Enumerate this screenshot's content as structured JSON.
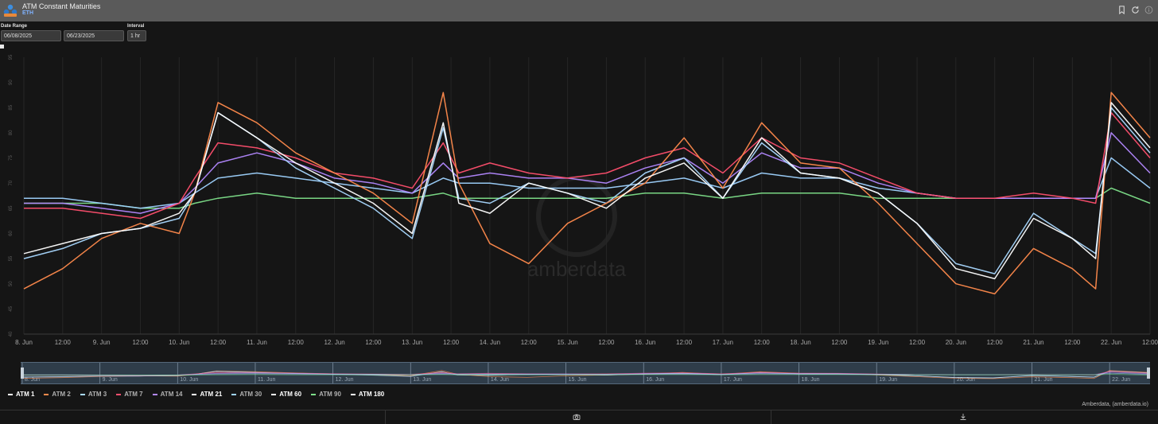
{
  "header": {
    "title": "ATM Constant Maturities",
    "subtitle": "ETH"
  },
  "controls": {
    "date_range_label": "Date Range",
    "start_date": "06/08/2025",
    "end_date": "06/23/2025",
    "interval_label": "Interval",
    "interval_value": "1 hr"
  },
  "icons": {
    "logo": "amberdata-logo-icon",
    "bookmark": "bookmark-icon",
    "refresh": "refresh-icon",
    "info": "info-icon",
    "camera": "camera-icon",
    "download": "download-icon"
  },
  "watermark": "amberdata",
  "credit": "Amberdata, (amberdata.io)",
  "colors": {
    "background": "#151515",
    "grid": "#2a2a2a",
    "atm_1": "#ffffff",
    "atm_2": "#ff8a4c",
    "atm_3": "#a9d8ff",
    "atm_7": "#ff4f6e",
    "atm_14": "#b388ff",
    "atm_21": "#ffffff",
    "atm_30": "#9fd3ff",
    "atm_60": "#ffffff",
    "atm_90": "#7ee08a",
    "atm_180": "#ffffff"
  },
  "chart_data": {
    "type": "line",
    "x_tick_labels": [
      "8. Jun",
      "12:00",
      "9. Jun",
      "12:00",
      "10. Jun",
      "12:00",
      "11. Jun",
      "12:00",
      "12. Jun",
      "12:00",
      "13. Jun",
      "12:00",
      "14. Jun",
      "12:00",
      "15. Jun",
      "12:00",
      "16. Jun",
      "12:00",
      "17. Jun",
      "12:00",
      "18. Jun",
      "12:00",
      "19. Jun",
      "12:00",
      "20. Jun",
      "12:00",
      "21. Jun",
      "12:00",
      "22. Jun",
      "12:00"
    ],
    "navigator_labels": [
      "8. Jun",
      "9. Jun",
      "10. Jun",
      "11. Jun",
      "12. Jun",
      "13. Jun",
      "14. Jun",
      "15. Jun",
      "16. Jun",
      "17. Jun",
      "18. Jun",
      "19. Jun",
      "20. Jun",
      "21. Jun",
      "22. Jun"
    ],
    "y_tick_labels": [
      "40",
      "45",
      "50",
      "55",
      "60",
      "65",
      "70",
      "75",
      "80",
      "85",
      "90",
      "95"
    ],
    "ylim": [
      40,
      95
    ],
    "xlim_days": [
      0,
      14.5
    ],
    "grid": "vertical",
    "legend_placement": "bottom-left",
    "x_days": [
      0,
      0.5,
      1,
      1.5,
      2,
      2.2,
      2.5,
      3,
      3.5,
      4,
      4.5,
      5,
      5.4,
      5.6,
      6,
      6.5,
      7,
      7.5,
      8,
      8.5,
      9,
      9.5,
      10,
      10.5,
      11,
      11.5,
      12,
      12.5,
      13,
      13.5,
      13.8,
      14,
      14.5
    ],
    "series": [
      {
        "name": "ATM 1",
        "color_key": "atm_1",
        "values": [
          56,
          58,
          60,
          61,
          64,
          68,
          84,
          79,
          74,
          70,
          66,
          60,
          82,
          66,
          64,
          70,
          68,
          65,
          71,
          74,
          67,
          79,
          72,
          71,
          68,
          62,
          53,
          51,
          63,
          59,
          55,
          86,
          77
        ]
      },
      {
        "name": "ATM 2",
        "color_key": "atm_2",
        "values": [
          49,
          53,
          59,
          62,
          60,
          68,
          86,
          82,
          76,
          72,
          68,
          62,
          88,
          70,
          58,
          54,
          62,
          66,
          70,
          79,
          69,
          82,
          74,
          73,
          66,
          58,
          50,
          48,
          57,
          53,
          49,
          88,
          79
        ]
      },
      {
        "name": "ATM 3",
        "color_key": "atm_3",
        "values": [
          55,
          57,
          60,
          61,
          63,
          68,
          84,
          79,
          73,
          69,
          65,
          59,
          81,
          67,
          66,
          70,
          68,
          66,
          72,
          75,
          67,
          78,
          72,
          71,
          68,
          62,
          54,
          52,
          64,
          59,
          56,
          85,
          76
        ]
      },
      {
        "name": "ATM 7",
        "color_key": "atm_7",
        "values": [
          65,
          65,
          64,
          63,
          66,
          71,
          78,
          77,
          75,
          72,
          71,
          69,
          78,
          72,
          74,
          72,
          71,
          72,
          75,
          77,
          72,
          79,
          75,
          74,
          71,
          68,
          67,
          67,
          68,
          67,
          66,
          84,
          75
        ]
      },
      {
        "name": "ATM 14",
        "color_key": "atm_14",
        "values": [
          66,
          66,
          65,
          64,
          66,
          69,
          74,
          76,
          74,
          71,
          70,
          68,
          74,
          71,
          72,
          71,
          71,
          70,
          73,
          75,
          70,
          76,
          73,
          73,
          70,
          68,
          67,
          67,
          67,
          67,
          67,
          80,
          72
        ]
      },
      {
        "name": "ATM 30",
        "color_key": "atm_30",
        "values": [
          67,
          67,
          66,
          65,
          66,
          68,
          71,
          72,
          71,
          70,
          69,
          68,
          71,
          70,
          70,
          69,
          69,
          69,
          70,
          71,
          69,
          72,
          71,
          71,
          69,
          68,
          67,
          67,
          67,
          67,
          67,
          75,
          69
        ]
      },
      {
        "name": "ATM 90",
        "color_key": "atm_90",
        "values": [
          66,
          66,
          66,
          65,
          65,
          66,
          67,
          68,
          67,
          67,
          67,
          67,
          68,
          67,
          67,
          67,
          67,
          67,
          68,
          68,
          67,
          68,
          68,
          68,
          67,
          67,
          67,
          67,
          67,
          67,
          67,
          69,
          66
        ]
      }
    ]
  }
}
